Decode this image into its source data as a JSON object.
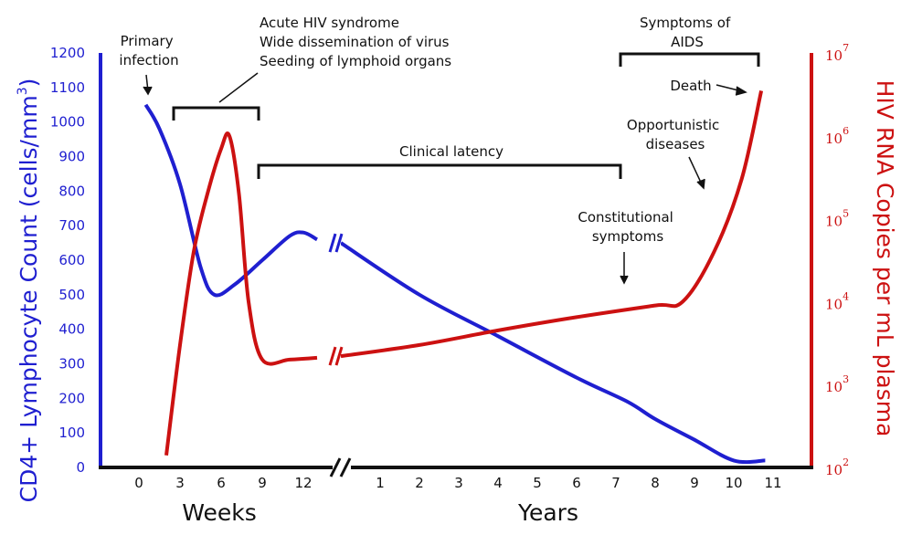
{
  "chart_data": {
    "type": "line",
    "left_axis": {
      "label": "CD4+ Lymphocyte Count (cells/mm",
      "label_sup": "3",
      "label_end": ")",
      "ticks": [
        "0",
        "100",
        "200",
        "300",
        "400",
        "500",
        "600",
        "700",
        "800",
        "900",
        "1000",
        "1100",
        "1200"
      ],
      "range": [
        0,
        1200
      ],
      "color": "#1f1fd0"
    },
    "right_axis": {
      "label": "HIV RNA Copies per mL plasma",
      "ticks": [
        {
          "base": "10",
          "exp": "2"
        },
        {
          "base": "10",
          "exp": "3"
        },
        {
          "base": "10",
          "exp": "4"
        },
        {
          "base": "10",
          "exp": "5"
        },
        {
          "base": "10",
          "exp": "6"
        },
        {
          "base": "10",
          "exp": "7"
        }
      ],
      "scale": "log",
      "range": [
        100,
        10000000
      ],
      "color": "#cc1111"
    },
    "x_axis": {
      "week_label": "Weeks",
      "year_label": "Years",
      "week_ticks": [
        "0",
        "3",
        "6",
        "9",
        "12"
      ],
      "year_ticks": [
        "1",
        "2",
        "3",
        "4",
        "5",
        "6",
        "7",
        "8",
        "9",
        "10",
        "11"
      ]
    },
    "series": [
      {
        "color": "#1f1fd0",
        "weeks": [
          [
            0.5,
            1050
          ],
          [
            1.5,
            980
          ],
          [
            3,
            820
          ],
          [
            4.5,
            580
          ],
          [
            5.5,
            500
          ],
          [
            7,
            530
          ],
          [
            9,
            600
          ],
          [
            11,
            670
          ],
          [
            12,
            680
          ],
          [
            13,
            660
          ]
        ],
        "years": [
          [
            0,
            650
          ],
          [
            2,
            500
          ],
          [
            4,
            380
          ],
          [
            6,
            260
          ],
          [
            7.3,
            190
          ],
          [
            8,
            140
          ],
          [
            9,
            80
          ],
          [
            10,
            20
          ],
          [
            10.8,
            20
          ]
        ]
      },
      {
        "color": "#cc1111",
        "weeks": [
          [
            2,
            140
          ],
          [
            3,
            3000
          ],
          [
            4,
            40000
          ],
          [
            5,
            200000
          ],
          [
            6,
            700000
          ],
          [
            6.6,
            1000000
          ],
          [
            7.3,
            200000
          ],
          [
            8,
            10000
          ],
          [
            9,
            2000
          ],
          [
            11,
            2000
          ],
          [
            13,
            2100
          ]
        ],
        "years": [
          [
            0,
            2200
          ],
          [
            2,
            3000
          ],
          [
            4,
            4500
          ],
          [
            6,
            6500
          ],
          [
            8,
            9000
          ],
          [
            8.7,
            10000
          ],
          [
            9.5,
            40000
          ],
          [
            10.2,
            300000
          ],
          [
            10.7,
            3500000
          ]
        ]
      }
    ],
    "annotations": {
      "primary_infection": [
        "Primary",
        "infection"
      ],
      "acute": [
        "Acute HIV syndrome",
        "Wide dissemination of virus",
        "Seeding of lymphoid organs"
      ],
      "symptoms_aids": [
        "Symptoms of",
        "AIDS"
      ],
      "clinical_latency": "Clinical latency",
      "death": "Death",
      "opportunistic": [
        "Opportunistic",
        "diseases"
      ],
      "constitutional": [
        "Constitutional",
        "symptoms"
      ]
    }
  }
}
